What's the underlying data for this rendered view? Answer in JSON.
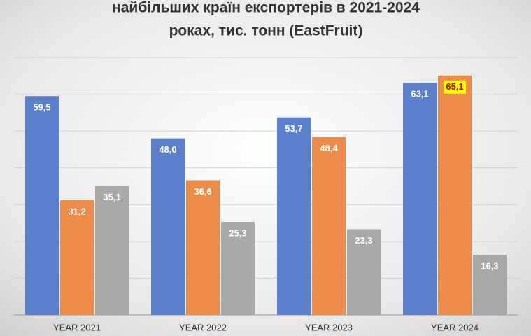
{
  "chart_data": {
    "type": "bar",
    "title": [
      "найбільших країн експортерів в 2021-2024",
      "роках, тис. тонн (EastFruit)"
    ],
    "categories": [
      "YEAR 2021",
      "YEAR 2022",
      "YEAR 2023",
      "YEAR 2024"
    ],
    "series": [
      {
        "color": "#5b7fcb",
        "values": [
          59.5,
          48.0,
          53.7,
          63.1
        ],
        "value_labels": [
          "59,5",
          "48,0",
          "53,7",
          "63,1"
        ]
      },
      {
        "color": "#ed8b48",
        "values": [
          31.2,
          36.6,
          48.4,
          65.1
        ],
        "value_labels": [
          "31,2",
          "36,6",
          "48,4",
          "65,1"
        ],
        "highlight_index": 3,
        "highlight_color": "#ffff00"
      },
      {
        "color": "#a8a8a8",
        "values": [
          35.1,
          25.3,
          23.3,
          16.3
        ],
        "value_labels": [
          "35,1",
          "25,3",
          "23,3",
          "16,3"
        ]
      }
    ],
    "ylim": [
      0,
      70
    ],
    "yticks": [
      0,
      10,
      20,
      30,
      40,
      50,
      60,
      70
    ],
    "grid": true
  }
}
